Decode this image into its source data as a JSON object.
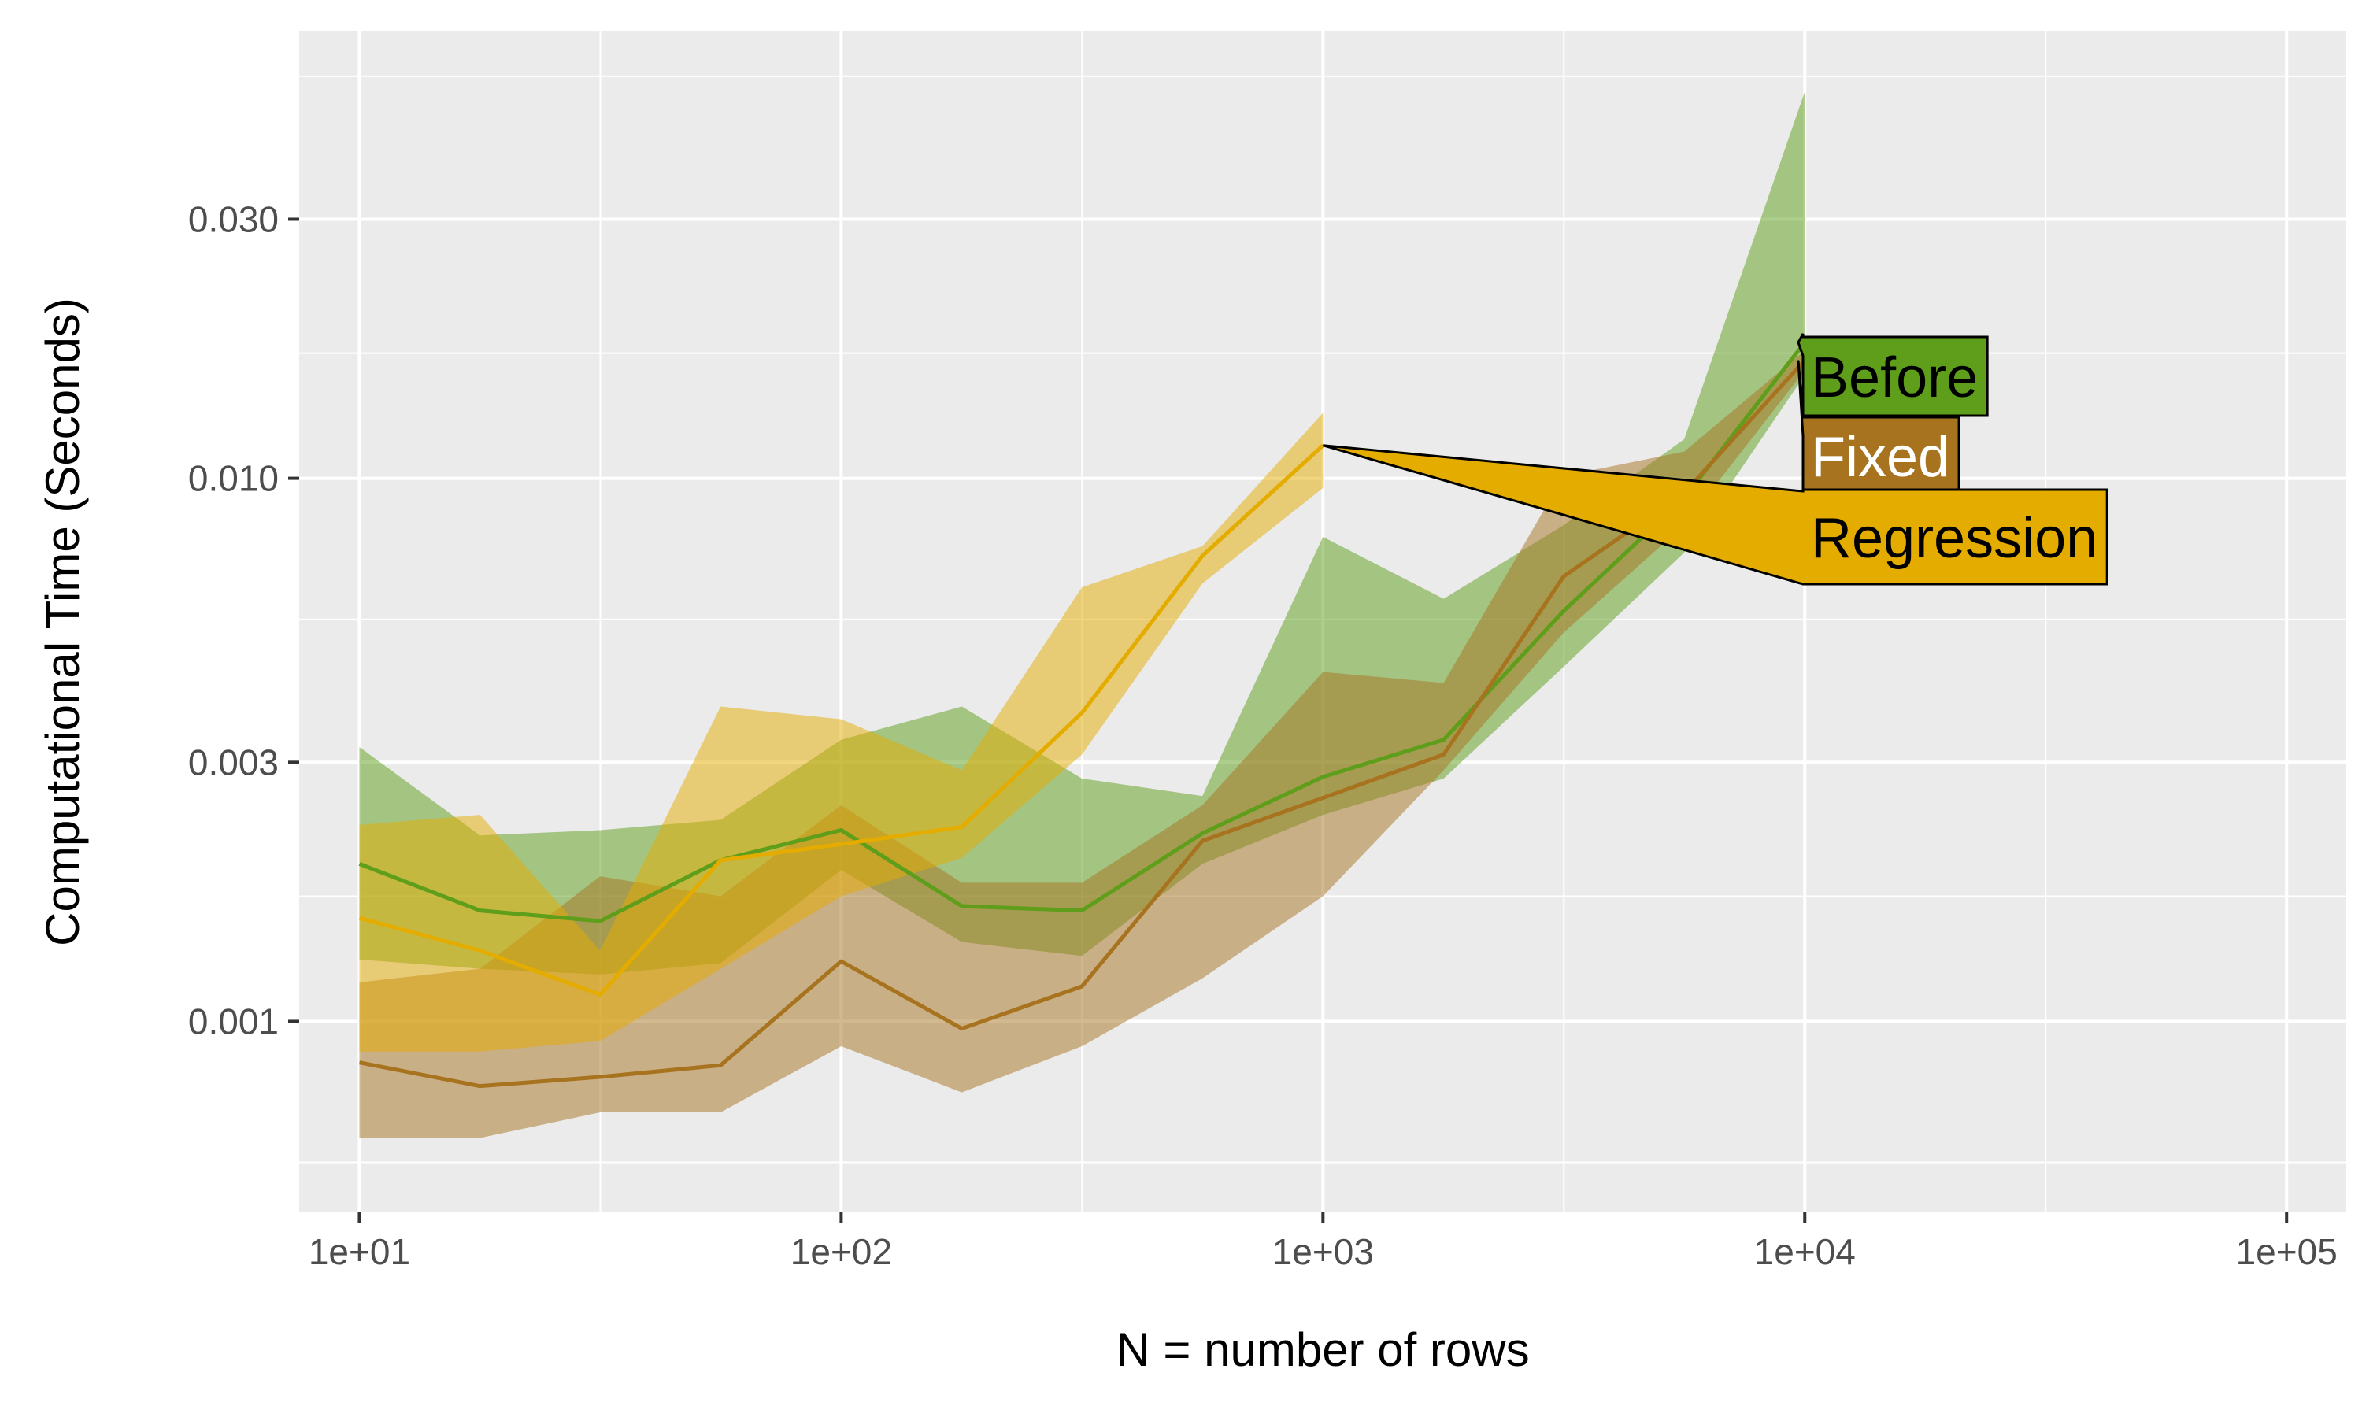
{
  "chart_data": {
    "type": "line",
    "xlabel": "N = number of rows",
    "ylabel": "Computational Time (Seconds)",
    "xscale": "log10",
    "yscale": "log10",
    "xlim": [
      7.5,
      133000
    ],
    "ylim": [
      0.000445,
      0.0665
    ],
    "x_ticks": [
      10,
      100,
      1000,
      10000,
      100000
    ],
    "x_tick_labels": [
      "1e+01",
      "1e+02",
      "1e+03",
      "1e+04",
      "1e+05"
    ],
    "y_ticks": [
      0.001,
      0.003,
      0.01,
      0.03
    ],
    "y_tick_labels": [
      "0.001",
      "0.003",
      "0.010",
      "0.030"
    ],
    "grid": true,
    "legend": "direct labels at line ends",
    "colors": {
      "panel_background": "#ebebeb",
      "grid": "#ffffff",
      "Before": "#5e9e1a",
      "Fixed": "#a8731f",
      "Regression": "#e5ac00"
    },
    "series": [
      {
        "name": "Before",
        "x": [
          10,
          17.8,
          31.6,
          56.2,
          100,
          178,
          316,
          562,
          1000,
          1780,
          3160,
          5620,
          10000
        ],
        "median": [
          0.00195,
          0.0016,
          0.00153,
          0.00198,
          0.00225,
          0.00163,
          0.0016,
          0.00222,
          0.00282,
          0.0033,
          0.0057,
          0.0092,
          0.0178
        ],
        "lower": [
          0.0013,
          0.00125,
          0.00122,
          0.00128,
          0.0019,
          0.0014,
          0.00132,
          0.00195,
          0.0024,
          0.0028,
          0.0045,
          0.0073,
          0.0155
        ],
        "upper": [
          0.0032,
          0.0022,
          0.00225,
          0.00235,
          0.0033,
          0.0038,
          0.0028,
          0.0026,
          0.0078,
          0.006,
          0.0082,
          0.0118,
          0.0515
        ]
      },
      {
        "name": "Fixed",
        "x": [
          10,
          17.8,
          31.6,
          56.2,
          100,
          178,
          316,
          562,
          1000,
          1780,
          3160,
          5620,
          10000
        ],
        "median": [
          0.00084,
          0.00076,
          0.00079,
          0.00083,
          0.00129,
          0.00097,
          0.00116,
          0.00215,
          0.00258,
          0.0031,
          0.0066,
          0.0094,
          0.0165
        ],
        "lower": [
          0.00061,
          0.00061,
          0.00068,
          0.00068,
          0.0009,
          0.00074,
          0.0009,
          0.0012,
          0.0017,
          0.0029,
          0.0052,
          0.0082,
          0.0158
        ],
        "upper": [
          0.00118,
          0.00125,
          0.00185,
          0.0017,
          0.0025,
          0.0018,
          0.0018,
          0.0025,
          0.0044,
          0.0042,
          0.0101,
          0.0112,
          0.0172
        ]
      },
      {
        "name": "Regression",
        "x": [
          10,
          17.8,
          31.6,
          56.2,
          100,
          178,
          316,
          562,
          1000
        ],
        "median": [
          0.00155,
          0.00135,
          0.00112,
          0.00198,
          0.00212,
          0.00228,
          0.0037,
          0.0072,
          0.0115
        ],
        "lower": [
          0.00088,
          0.00088,
          0.00092,
          0.00125,
          0.0017,
          0.002,
          0.0031,
          0.0064,
          0.0096
        ],
        "upper": [
          0.0023,
          0.0024,
          0.00135,
          0.0038,
          0.0036,
          0.0029,
          0.0063,
          0.0075,
          0.0132
        ]
      }
    ]
  }
}
